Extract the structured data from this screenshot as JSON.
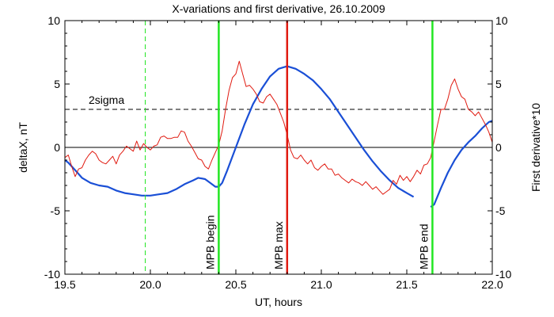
{
  "chart_data": {
    "type": "line",
    "title": "X-variations and first derivative, 26.10.2009",
    "xlabel": "UT, hours",
    "ylabel_left": "deltaX, nT",
    "ylabel_right": "First derivative*10",
    "xlim": [
      19.5,
      22.0
    ],
    "ylim_left": [
      -10,
      10
    ],
    "ylim_right": [
      -10,
      10
    ],
    "xticks": [
      19.5,
      20.0,
      20.5,
      21.0,
      21.5,
      22.0
    ],
    "xtick_labels": [
      "19.5",
      "20.0",
      "20.5",
      "21.0",
      "21.5",
      "22.0"
    ],
    "yticks_left": [
      -10,
      -5,
      0,
      5,
      10
    ],
    "ytick_labels_left": [
      "-10",
      "-5",
      "0",
      "5",
      "10"
    ],
    "yticks_right": [
      -10,
      -5,
      0,
      5,
      10
    ],
    "ytick_labels_right": [
      "-10",
      "-5",
      "0",
      "5",
      "10"
    ],
    "colors": {
      "deltaX": "#1a4fd6",
      "derivative": "#e01a10",
      "mpb_edges": "#22e622",
      "mpb_max": "#e01a10",
      "threshold": "#000000",
      "dashed_marker": "#22e622"
    },
    "threshold": {
      "label": "2sigma",
      "value": 3
    },
    "zero_line": 0,
    "vertical_markers": [
      {
        "x": 19.97,
        "label": "",
        "style": "dashed",
        "color": "#22e622"
      },
      {
        "x": 20.4,
        "label": "MPB begin",
        "style": "solid",
        "color": "#22e622"
      },
      {
        "x": 20.8,
        "label": "MPB max",
        "style": "solid",
        "color": "#e01a10"
      },
      {
        "x": 21.65,
        "label": "MPB end",
        "style": "solid",
        "color": "#22e622"
      }
    ],
    "series": [
      {
        "key": "deltaX",
        "axis": "left",
        "segments": [
          {
            "x": [
              19.5,
              19.52,
              19.56,
              19.6,
              19.65,
              19.7,
              19.75,
              19.8,
              19.85,
              19.9,
              19.95,
              20.0,
              20.05,
              20.1,
              20.15,
              20.2,
              20.25,
              20.28,
              20.32,
              20.35,
              20.38,
              20.4,
              20.42,
              20.45,
              20.5,
              20.55,
              20.6,
              20.65,
              20.7,
              20.75,
              20.8,
              20.85,
              20.9,
              20.95,
              21.0,
              21.05,
              21.1,
              21.15,
              21.2,
              21.25,
              21.3,
              21.35,
              21.4,
              21.45,
              21.5,
              21.54
            ],
            "y": [
              -1.0,
              -1.2,
              -1.8,
              -2.4,
              -2.8,
              -3.0,
              -3.1,
              -3.4,
              -3.6,
              -3.7,
              -3.8,
              -3.8,
              -3.7,
              -3.6,
              -3.3,
              -2.9,
              -2.6,
              -2.4,
              -2.5,
              -2.8,
              -3.1,
              -3.1,
              -2.8,
              -1.8,
              0.0,
              1.8,
              3.4,
              4.6,
              5.6,
              6.2,
              6.4,
              6.2,
              5.8,
              5.3,
              4.6,
              3.8,
              2.8,
              1.8,
              0.8,
              -0.2,
              -1.1,
              -1.9,
              -2.6,
              -3.2,
              -3.6,
              -3.9
            ]
          },
          {
            "x": [
              21.64,
              21.66,
              21.7,
              21.74,
              21.78,
              21.82,
              21.86,
              21.9,
              21.94,
              21.98,
              22.0
            ],
            "y": [
              -4.7,
              -4.5,
              -3.2,
              -2.0,
              -1.0,
              -0.2,
              0.4,
              0.9,
              1.5,
              2.0,
              2.1
            ]
          }
        ]
      },
      {
        "key": "derivative",
        "axis": "right",
        "segments": [
          {
            "x": [
              19.5,
              19.52,
              19.54,
              19.56,
              19.58,
              19.6,
              19.62,
              19.64,
              19.66,
              19.68,
              19.7,
              19.72,
              19.74,
              19.76,
              19.78,
              19.8,
              19.82,
              19.84,
              19.86,
              19.88,
              19.9,
              19.92,
              19.94,
              19.96,
              19.98,
              20.0,
              20.02,
              20.04,
              20.06,
              20.08,
              20.1,
              20.12,
              20.14,
              20.16,
              20.18,
              20.2,
              20.22,
              20.24,
              20.26,
              20.28,
              20.3,
              20.32,
              20.34,
              20.36,
              20.38,
              20.4,
              20.42,
              20.44,
              20.46,
              20.48,
              20.5,
              20.52,
              20.54,
              20.56,
              20.58,
              20.6,
              20.62,
              20.64,
              20.66,
              20.68,
              20.7,
              20.72,
              20.74,
              20.76,
              20.78,
              20.8,
              20.82,
              20.84,
              20.86,
              20.88,
              20.9,
              20.92,
              20.94,
              20.96,
              20.98,
              21.0,
              21.02,
              21.04,
              21.06,
              21.08,
              21.1,
              21.12,
              21.14,
              21.16,
              21.18,
              21.2,
              21.22,
              21.24,
              21.26,
              21.28,
              21.3,
              21.32,
              21.34,
              21.36,
              21.38,
              21.4,
              21.42,
              21.44,
              21.46,
              21.48,
              21.5,
              21.52,
              21.54,
              21.56,
              21.58,
              21.6,
              21.62,
              21.64,
              21.66,
              21.68,
              21.7,
              21.72,
              21.74,
              21.76,
              21.78,
              21.8,
              21.82,
              21.84,
              21.86,
              21.88,
              21.9,
              21.92,
              21.94,
              21.96,
              21.98,
              22.0
            ],
            "y": [
              -0.8,
              -0.6,
              -1.5,
              -2.3,
              -1.7,
              -1.6,
              -1.0,
              -0.6,
              -0.3,
              -0.5,
              -1.0,
              -1.2,
              -1.3,
              -1.0,
              -0.7,
              -1.3,
              -0.6,
              -0.3,
              0.1,
              -0.1,
              -0.3,
              0.5,
              -0.2,
              0.3,
              0.0,
              -0.2,
              0.1,
              0.2,
              0.8,
              0.9,
              0.7,
              0.7,
              0.8,
              0.8,
              1.3,
              1.2,
              0.5,
              0.1,
              -0.4,
              -0.9,
              -1.0,
              -1.5,
              -1.7,
              -1.0,
              -0.4,
              0.2,
              1.3,
              3.0,
              4.5,
              5.5,
              5.8,
              6.8,
              5.8,
              4.8,
              4.9,
              4.6,
              4.2,
              3.6,
              3.5,
              4.0,
              4.2,
              3.8,
              3.4,
              2.7,
              2.0,
              1.0,
              -0.2,
              -0.8,
              -0.9,
              -0.6,
              -1.0,
              -1.3,
              -1.0,
              -1.6,
              -1.8,
              -1.5,
              -1.3,
              -1.7,
              -1.7,
              -2.2,
              -2.1,
              -2.4,
              -2.6,
              -2.8,
              -2.5,
              -2.7,
              -2.8,
              -3.0,
              -2.7,
              -3.0,
              -3.3,
              -3.1,
              -3.4,
              -3.7,
              -3.5,
              -3.3,
              -2.6,
              -2.9,
              -2.2,
              -2.6,
              -2.3,
              -2.7,
              -2.3,
              -1.8,
              -2.1,
              -1.4,
              -1.3,
              -0.8,
              0.5,
              1.8,
              3.0,
              3.0,
              3.8,
              4.9,
              5.4,
              4.6,
              4.0,
              3.8,
              3.0,
              2.8,
              2.5,
              2.8,
              2.3,
              1.8,
              1.2,
              0.4
            ]
          }
        ]
      }
    ]
  }
}
